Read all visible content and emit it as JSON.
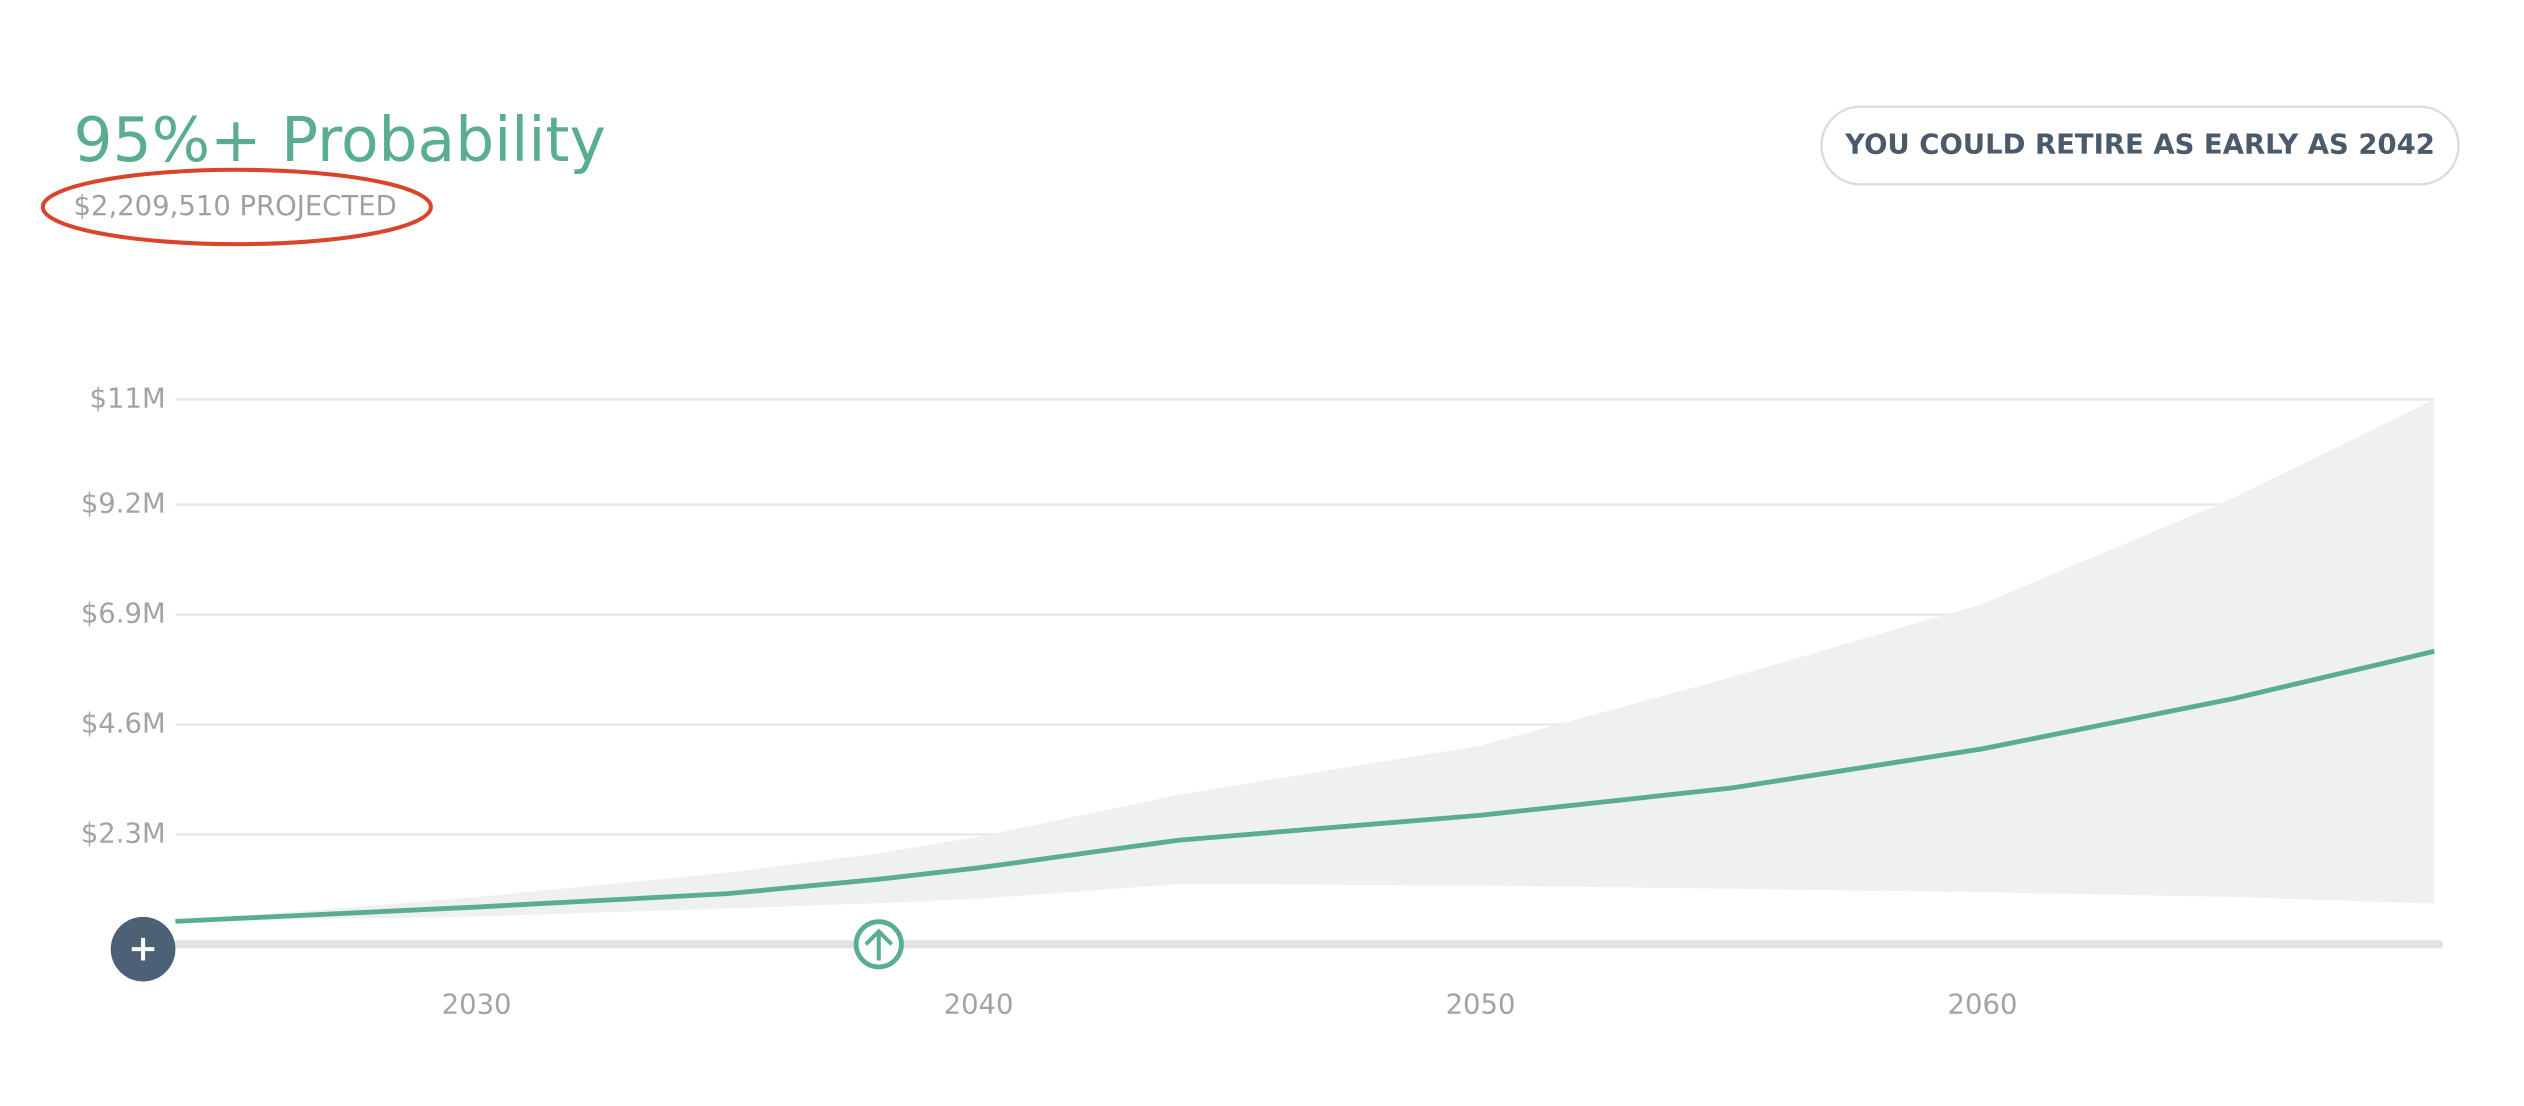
{
  "chart_data": {
    "type": "line",
    "title": "95%+ Probability",
    "subtitle": "$2,209,510 PROJECTED",
    "annotation": "YOU COULD RETIRE AS EARLY AS 2042",
    "x": [
      2024,
      2030,
      2035,
      2038,
      2040,
      2044,
      2050,
      2055,
      2060,
      2065,
      2069
    ],
    "series": [
      {
        "color": "#5aad91",
        "values": [
          0.48,
          0.78,
          1.06,
          1.36,
          1.6,
          2.18,
          2.7,
          3.27,
          4.09,
          5.14,
          6.13
        ]
      }
    ],
    "range": {
      "color": "#eff1f0",
      "high": [
        0.48,
        0.99,
        1.5,
        1.9,
        2.25,
        3.13,
        4.16,
        5.59,
        7.12,
        9.34,
        11.4
      ],
      "low": [
        0.48,
        0.58,
        0.75,
        0.86,
        0.95,
        1.26,
        1.23,
        1.16,
        1.09,
        0.99,
        0.85
      ]
    },
    "xlim": [
      2024,
      2069
    ],
    "xticks": [
      2030,
      2040,
      2050,
      2060
    ],
    "ylim": [
      0,
      11.4
    ],
    "yticks": [
      {
        "value": 2.3,
        "label": "$2.3M"
      },
      {
        "value": 4.6,
        "label": "$4.6M"
      },
      {
        "value": 6.9,
        "label": "$6.9M"
      },
      {
        "value": 9.2,
        "label": "$9.2M"
      },
      {
        "value": 11.4,
        "label": "$11M"
      }
    ],
    "grid": true
  }
}
